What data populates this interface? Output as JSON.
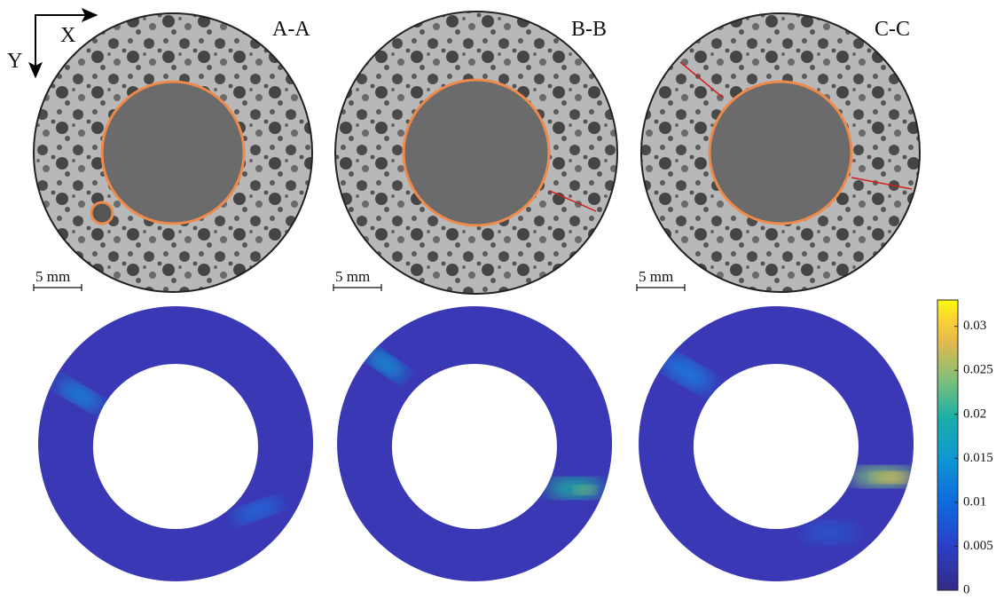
{
  "axes": {
    "x": "X",
    "y": "Y"
  },
  "panels": [
    {
      "label": "A-A",
      "scale_bar": "5 mm"
    },
    {
      "label": "B-B",
      "scale_bar": "5 mm"
    },
    {
      "label": "C-C",
      "scale_bar": "5 mm"
    }
  ],
  "colorbar": {
    "lim": [
      0,
      0.033
    ],
    "ticks": [
      0,
      0.005,
      0.01,
      0.015,
      0.02,
      0.025,
      0.03
    ]
  }
}
